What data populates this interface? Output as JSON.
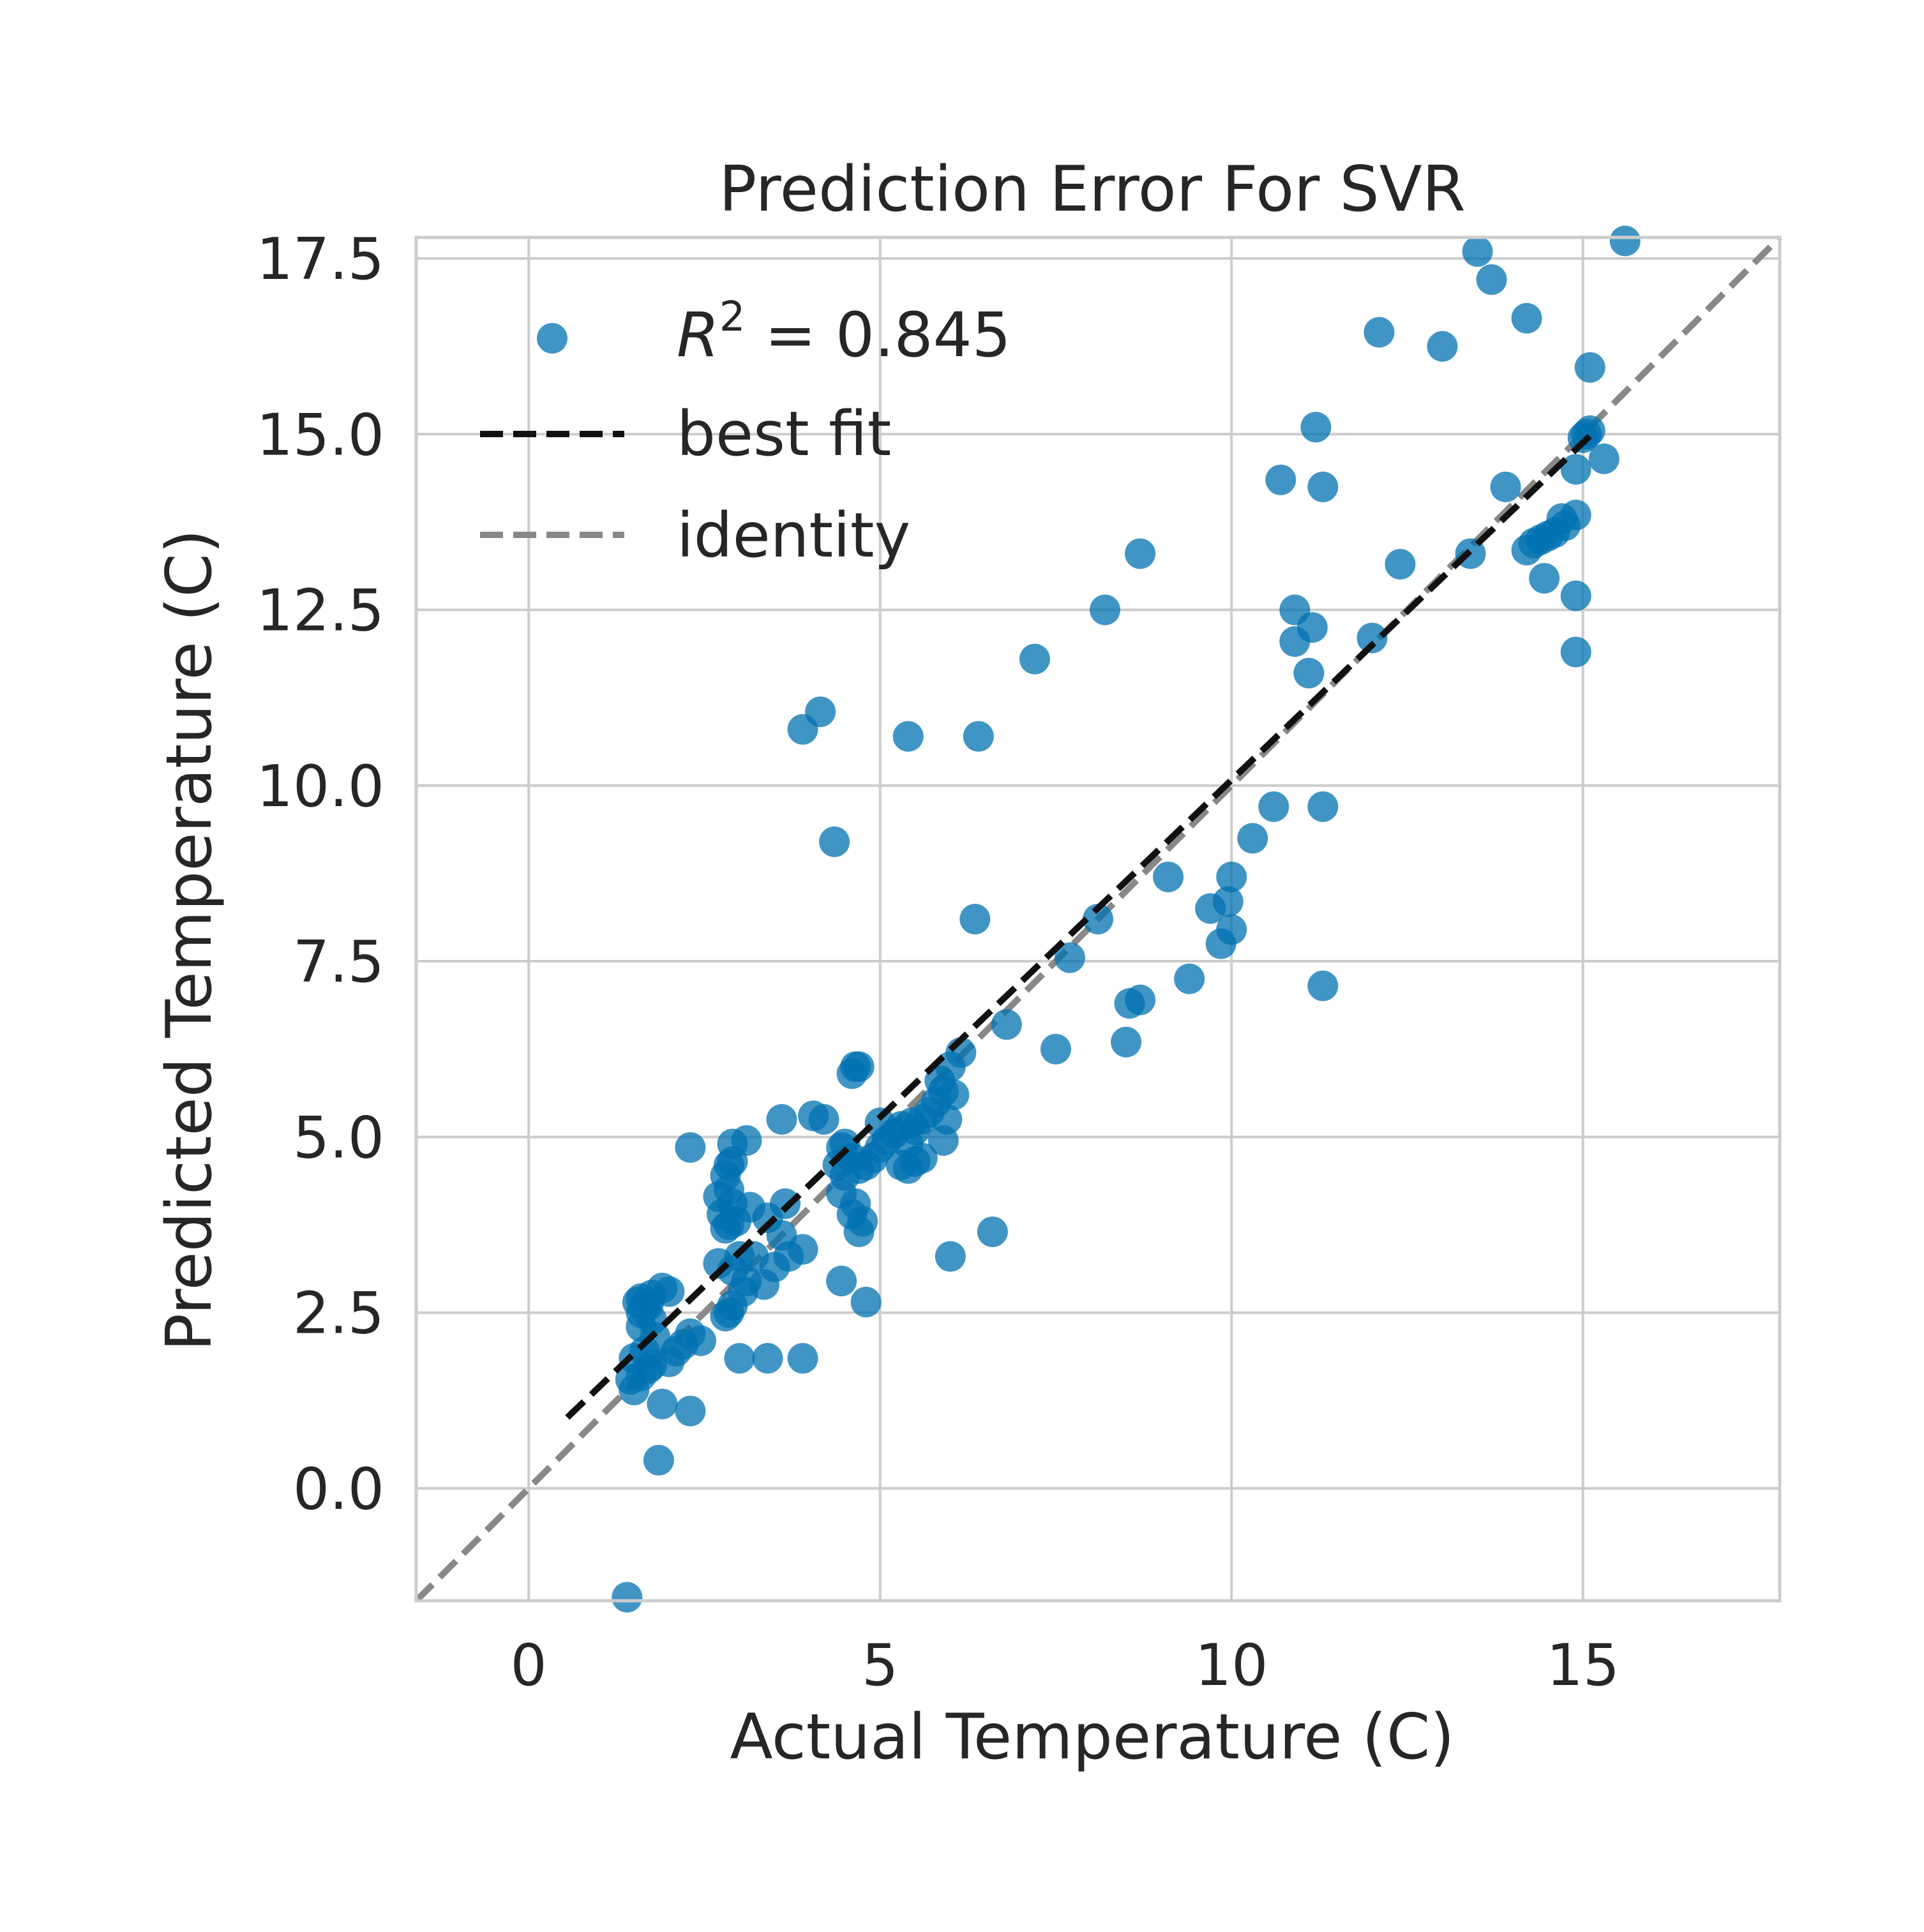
{
  "chart_data": {
    "type": "scatter",
    "title": "Prediction Error For SVR",
    "xlabel": "Actual Temperature (C)",
    "ylabel": "Predicted Temperature (C)",
    "xlim": [
      -1.6,
      17.8
    ],
    "ylim": [
      -1.6,
      17.8
    ],
    "x_ticks": [
      0,
      5,
      10,
      15
    ],
    "x_tick_labels": [
      "0",
      "5",
      "10",
      "15"
    ],
    "y_ticks": [
      0.0,
      2.5,
      5.0,
      7.5,
      10.0,
      12.5,
      15.0,
      17.5
    ],
    "y_tick_labels": [
      "0.0",
      "2.5",
      "5.0",
      "7.5",
      "10.0",
      "12.5",
      "15.0",
      "17.5"
    ],
    "grid": true,
    "legend_position": "top-left",
    "colors": {
      "points": "#0072B2",
      "best_fit": "#111111",
      "identity": "#888888",
      "grid": "#cccccc",
      "frame": "#cccccc"
    },
    "legend": {
      "score_symbol": "R",
      "score_exponent": "2",
      "score_text": " = 0.845",
      "best_fit_label": "best fit",
      "identity_label": "identity"
    },
    "best_fit": {
      "x_range": [
        0.55,
        15.1
      ],
      "slope": 0.96,
      "intercept": 0.48
    },
    "identity": {
      "x_range": [
        -1.6,
        17.8
      ]
    },
    "points": [
      [
        1.4,
        -1.55
      ],
      [
        1.85,
        0.4
      ],
      [
        2.3,
        1.1
      ],
      [
        1.9,
        1.2
      ],
      [
        1.5,
        1.4
      ],
      [
        1.45,
        1.55
      ],
      [
        1.6,
        1.6
      ],
      [
        1.7,
        1.7
      ],
      [
        1.75,
        1.75
      ],
      [
        1.5,
        1.85
      ],
      [
        1.65,
        1.95
      ],
      [
        2.0,
        1.8
      ],
      [
        2.1,
        1.95
      ],
      [
        2.2,
        2.05
      ],
      [
        2.3,
        2.2
      ],
      [
        2.45,
        2.1
      ],
      [
        1.8,
        2.15
      ],
      [
        1.6,
        2.3
      ],
      [
        1.75,
        2.4
      ],
      [
        1.6,
        2.5
      ],
      [
        1.55,
        2.65
      ],
      [
        1.65,
        2.6
      ],
      [
        1.75,
        2.75
      ],
      [
        1.9,
        2.85
      ],
      [
        2.0,
        2.8
      ],
      [
        1.6,
        2.7
      ],
      [
        1.7,
        2.6
      ],
      [
        2.8,
        2.45
      ],
      [
        2.85,
        2.5
      ],
      [
        2.9,
        2.6
      ],
      [
        2.7,
        3.2
      ],
      [
        3.0,
        1.85
      ],
      [
        3.4,
        1.85
      ],
      [
        3.9,
        1.85
      ],
      [
        3.05,
        2.8
      ],
      [
        3.1,
        2.95
      ],
      [
        3.35,
        2.9
      ],
      [
        3.5,
        3.15
      ],
      [
        3.7,
        3.3
      ],
      [
        3.9,
        3.4
      ],
      [
        3.2,
        3.3
      ],
      [
        3.0,
        3.3
      ],
      [
        2.9,
        3.1
      ],
      [
        2.8,
        3.7
      ],
      [
        2.85,
        3.75
      ],
      [
        2.95,
        3.8
      ],
      [
        2.75,
        3.9
      ],
      [
        2.9,
        4.05
      ],
      [
        3.15,
        4.0
      ],
      [
        3.4,
        3.85
      ],
      [
        3.6,
        3.6
      ],
      [
        3.65,
        4.05
      ],
      [
        2.7,
        4.15
      ],
      [
        2.85,
        4.25
      ],
      [
        2.8,
        4.45
      ],
      [
        2.85,
        4.6
      ],
      [
        2.9,
        4.65
      ],
      [
        2.3,
        4.85
      ],
      [
        2.9,
        4.9
      ],
      [
        3.1,
        4.95
      ],
      [
        3.6,
        5.25
      ],
      [
        4.05,
        5.3
      ],
      [
        4.2,
        5.25
      ],
      [
        4.45,
        4.2
      ],
      [
        4.5,
        4.45
      ],
      [
        4.4,
        4.6
      ],
      [
        4.45,
        4.85
      ],
      [
        4.5,
        4.9
      ],
      [
        4.6,
        4.7
      ],
      [
        4.7,
        4.55
      ],
      [
        4.65,
        4.05
      ],
      [
        4.75,
        3.8
      ],
      [
        4.7,
        3.65
      ],
      [
        4.6,
        3.9
      ],
      [
        4.45,
        2.95
      ],
      [
        4.8,
        2.65
      ],
      [
        4.6,
        5.9
      ],
      [
        4.65,
        6.0
      ],
      [
        4.7,
        6.0
      ],
      [
        4.8,
        4.6
      ],
      [
        4.9,
        4.7
      ],
      [
        5.0,
        4.85
      ],
      [
        5.1,
        4.95
      ],
      [
        5.0,
        5.2
      ],
      [
        5.2,
        5.05
      ],
      [
        5.3,
        5.15
      ],
      [
        5.4,
        4.9
      ],
      [
        5.5,
        5.1
      ],
      [
        5.45,
        5.2
      ],
      [
        5.6,
        5.25
      ],
      [
        5.7,
        5.35
      ],
      [
        5.8,
        5.5
      ],
      [
        5.9,
        5.65
      ],
      [
        6.05,
        5.6
      ],
      [
        5.85,
        5.8
      ],
      [
        6.0,
        6.0
      ],
      [
        6.15,
        6.2
      ],
      [
        5.95,
        5.25
      ],
      [
        5.9,
        4.95
      ],
      [
        5.6,
        4.7
      ],
      [
        5.4,
        4.55
      ],
      [
        5.5,
        4.65
      ],
      [
        5.3,
        4.6
      ],
      [
        6.0,
        3.3
      ],
      [
        6.6,
        3.65
      ],
      [
        6.8,
        6.6
      ],
      [
        6.35,
        8.1
      ],
      [
        5.4,
        10.7
      ],
      [
        6.4,
        10.7
      ],
      [
        4.35,
        9.2
      ],
      [
        3.9,
        10.8
      ],
      [
        4.15,
        11.05
      ],
      [
        7.2,
        11.8
      ],
      [
        8.2,
        12.5
      ],
      [
        8.7,
        13.3
      ],
      [
        7.5,
        6.25
      ],
      [
        7.7,
        7.55
      ],
      [
        8.1,
        8.1
      ],
      [
        8.5,
        6.35
      ],
      [
        8.55,
        6.9
      ],
      [
        8.7,
        6.95
      ],
      [
        9.1,
        8.7
      ],
      [
        9.4,
        7.25
      ],
      [
        9.7,
        8.25
      ],
      [
        9.85,
        7.75
      ],
      [
        9.95,
        8.35
      ],
      [
        10.0,
        7.95
      ],
      [
        10.0,
        8.7
      ],
      [
        10.3,
        9.25
      ],
      [
        10.6,
        9.7
      ],
      [
        11.3,
        9.7
      ],
      [
        11.3,
        7.15
      ],
      [
        10.7,
        14.35
      ],
      [
        11.2,
        15.1
      ],
      [
        11.3,
        14.25
      ],
      [
        10.9,
        12.5
      ],
      [
        10.9,
        12.05
      ],
      [
        11.15,
        12.25
      ],
      [
        11.1,
        11.6
      ],
      [
        12.0,
        12.1
      ],
      [
        12.1,
        16.45
      ],
      [
        12.4,
        13.15
      ],
      [
        13.0,
        16.25
      ],
      [
        13.4,
        13.3
      ],
      [
        13.5,
        17.6
      ],
      [
        13.7,
        17.2
      ],
      [
        13.9,
        14.25
      ],
      [
        14.2,
        13.35
      ],
      [
        14.3,
        13.45
      ],
      [
        14.4,
        13.5
      ],
      [
        14.5,
        13.55
      ],
      [
        14.6,
        13.6
      ],
      [
        14.75,
        13.7
      ],
      [
        14.7,
        13.8
      ],
      [
        14.9,
        13.85
      ],
      [
        14.45,
        12.95
      ],
      [
        14.9,
        12.7
      ],
      [
        14.9,
        11.9
      ],
      [
        14.2,
        16.65
      ],
      [
        14.9,
        14.5
      ],
      [
        15.0,
        14.95
      ],
      [
        15.05,
        15.0
      ],
      [
        15.1,
        15.05
      ],
      [
        15.3,
        14.65
      ],
      [
        15.1,
        15.95
      ],
      [
        15.6,
        17.75
      ]
    ]
  }
}
